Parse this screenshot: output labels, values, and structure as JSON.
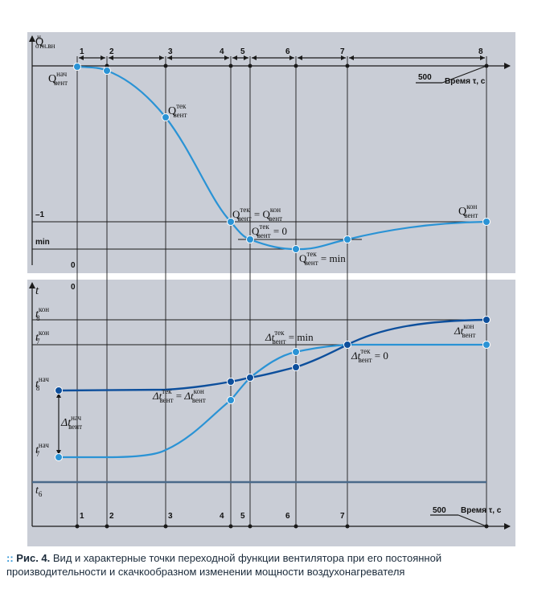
{
  "top_panel": {
    "y_axis_label": "Q",
    "y_axis_sup": "н",
    "y_axis_sub": "отн.вн",
    "tick_minus1": "–1",
    "tick_min": "min",
    "tick_zero": "0",
    "time_tick": "500",
    "time_label": "Время τ, с",
    "points": [
      {
        "base": "Q",
        "sub": "вент",
        "sup": "нач"
      },
      {
        "base": "Q",
        "sub": "вент",
        "sup": "тек"
      },
      {
        "base": "Q",
        "sub": "вент",
        "sup": "кон"
      }
    ],
    "eq_text_1a": "Q",
    "eq_sub": "вент",
    "eq_sup_tek": "тек",
    "eq_sup_kon": "кон",
    "eq_equals": " = ",
    "eq_zero": " = 0",
    "eq_min": " = min"
  },
  "bottom_panel": {
    "y_axis_label": "t",
    "tick_zero": "0",
    "t8_kon": {
      "base": "t",
      "sub": "8",
      "sup": "кон"
    },
    "t7_kon": {
      "base": "t",
      "sub": "7",
      "sup": "кон"
    },
    "t8_nach": {
      "base": "t",
      "sub": "8",
      "sup": "нач"
    },
    "t7_nach": {
      "base": "t",
      "sub": "7",
      "sup": "нач"
    },
    "t6": {
      "base": "t",
      "sub": "6"
    },
    "delta_nach": {
      "base": "Δt",
      "sub": "вент",
      "sup": "нач"
    },
    "delta_kon": {
      "base": "Δt",
      "sub": "вент",
      "sup": "кон"
    },
    "delta_tek_eq": {
      "base": "Δt",
      "sub": "вент",
      "sup": "тек"
    },
    "eq_min": " = min",
    "eq_zero": " = 0",
    "eq_equals": " = ",
    "time_tick": "500",
    "time_label": "Время τ, с"
  },
  "markers": [
    "1",
    "2",
    "3",
    "4",
    "5",
    "6",
    "7",
    "8"
  ],
  "bottom_markers": [
    "1",
    "2",
    "3",
    "4",
    "5",
    "6",
    "7"
  ],
  "caption": {
    "bullet": "::",
    "figure": "Рис. 4.",
    "text": "Вид и характерные точки переходной функции вентилятора при его постоянной производительности и скачкообразном изменении мощности воздухонагревателя"
  },
  "colors": {
    "panel": "#c9cdd6",
    "light_curve": "#2a93d5",
    "dark_curve": "#0d4f9c"
  }
}
